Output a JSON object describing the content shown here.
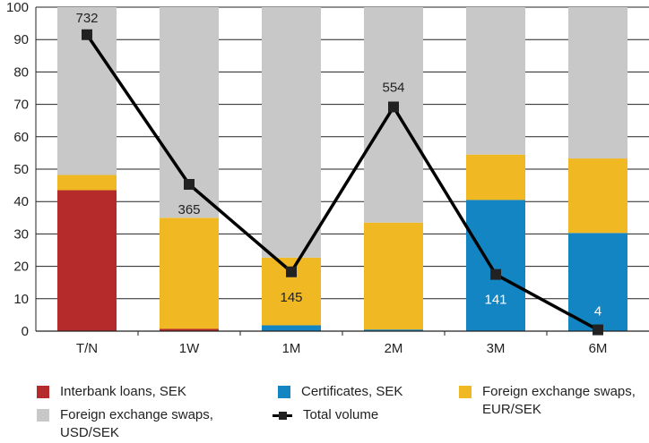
{
  "chart_data": {
    "type": "bar",
    "stacked": true,
    "categories": [
      "T/N",
      "1W",
      "1M",
      "2M",
      "3M",
      "6M"
    ],
    "ylim": [
      0,
      100
    ],
    "yticks": [
      0,
      10,
      20,
      30,
      40,
      50,
      60,
      70,
      80,
      90,
      100
    ],
    "grid": true,
    "series": [
      {
        "key": "interbank",
        "name": "Interbank loans, SEK",
        "color": "#b52a2a",
        "values": [
          43.5,
          0.7,
          0,
          0,
          0,
          0
        ]
      },
      {
        "key": "certificates",
        "name": "Certificates, SEK",
        "color": "#1385c3",
        "values": [
          0,
          0,
          1.8,
          0.5,
          40.5,
          30.3
        ]
      },
      {
        "key": "eur",
        "name": "Foreign exchange swaps, EUR/SEK",
        "color": "#f0b822",
        "values": [
          4.7,
          34.3,
          20.9,
          33,
          14,
          23
        ]
      },
      {
        "key": "usd",
        "name": "Foreign exchange swaps, USD/SEK",
        "color": "#c8c8c8",
        "values": [
          51.8,
          65,
          77.3,
          66.5,
          45.5,
          46.7
        ]
      }
    ],
    "line": {
      "name": "Total volume",
      "color": "#000000",
      "values": [
        91.5,
        45.3,
        18.3,
        69.2,
        17.5,
        0.4
      ],
      "labels": [
        "732",
        "365",
        "145",
        "554",
        "141",
        "4"
      ]
    },
    "legend": {
      "interbank": "Interbank loans, SEK",
      "certificates": "Certificates, SEK",
      "eur": "Foreign exchange swaps, EUR/SEK",
      "usd": "Foreign exchange swaps, USD/SEK",
      "total": "Total volume"
    }
  }
}
